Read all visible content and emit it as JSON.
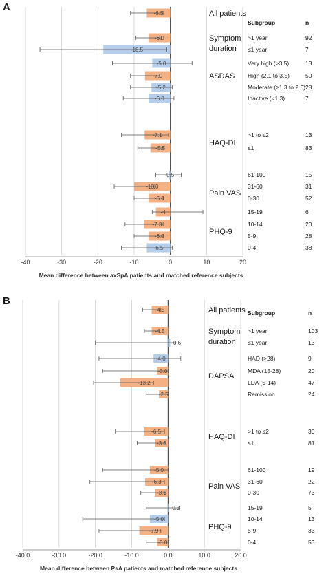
{
  "colors": {
    "orange": "#F4B183",
    "blue": "#B4CDEB",
    "grid": "#d0d0d0",
    "axis": "#7f7f7f",
    "errorbar": "#555555",
    "text": "#1a1a1a"
  },
  "chart_data": [
    {
      "type": "bar",
      "orientation": "horizontal",
      "panel_label": "A",
      "xlabel": "Mean difference between axSpA patients and matched reference subjects",
      "xlim": [
        -40,
        20
      ],
      "xticks": [
        "-40",
        "-30",
        "-20",
        "-10",
        "0",
        "10",
        "20"
      ],
      "grid": true,
      "header_subgroup": "Subgroup",
      "header_n": "n",
      "groups": [
        {
          "label": "All patients",
          "rows": [
            0
          ]
        },
        {
          "label": "Symptom duration",
          "rows": [
            1,
            2
          ]
        },
        {
          "label": "ASDAS",
          "rows": [
            3,
            4,
            5,
            6
          ]
        },
        {
          "label": "HAQ-DI",
          "rows": [
            7,
            8
          ]
        },
        {
          "label": "Pain VAS",
          "rows": [
            9,
            10,
            11
          ]
        },
        {
          "label": "PHQ-9",
          "rows": [
            12,
            13,
            14,
            15
          ]
        }
      ],
      "rows": [
        {
          "subgroup": "",
          "n": "",
          "value": -6.5,
          "label": "-6.5",
          "ci": [
            -11,
            -2
          ],
          "color": "orange"
        },
        {
          "subgroup": ">1 year",
          "n": "92",
          "value": -6.0,
          "label": "-6.0",
          "ci": [
            -9.5,
            -2.5
          ],
          "color": "orange"
        },
        {
          "subgroup": "≤1 year",
          "n": "7",
          "value": -18.5,
          "label": "-18.5",
          "ci": [
            -36,
            -1
          ],
          "color": "blue"
        },
        {
          "subgroup": "Very high (>3.5)",
          "n": "13",
          "value": -5.0,
          "label": "-5.0",
          "ci": [
            -16,
            6
          ],
          "color": "blue"
        },
        {
          "subgroup": "High (2.1 to 3.5)",
          "n": "50",
          "value": -7.0,
          "label": "-7.0",
          "ci": [
            -11,
            -3
          ],
          "color": "orange"
        },
        {
          "subgroup": "Moderate (≥1.3 to 2.0)",
          "n": "28",
          "value": -5.2,
          "label": "-5.2",
          "ci": [
            -11,
            0.5
          ],
          "color": "blue"
        },
        {
          "subgroup": "Inactive (<1.3)",
          "n": "7",
          "value": -6.0,
          "label": "-6.0",
          "ci": [
            -13,
            1
          ],
          "color": "blue"
        },
        {
          "subgroup": ">1 to ≤2",
          "n": "13",
          "value": -7.1,
          "label": "-7.1",
          "ci": [
            -13.5,
            -0.5
          ],
          "color": "orange"
        },
        {
          "subgroup": "≤1",
          "n": "83",
          "value": -5.5,
          "label": "-5.5",
          "ci": [
            -9,
            -2
          ],
          "color": "orange"
        },
        {
          "subgroup": "61-100",
          "n": "15",
          "value": -0.5,
          "label": "-0.5",
          "ci": [
            -4,
            3
          ],
          "color": "blue"
        },
        {
          "subgroup": "31-60",
          "n": "31",
          "value": -10.0,
          "label": "-10.0",
          "ci": [
            -15.5,
            -4.5
          ],
          "color": "orange"
        },
        {
          "subgroup": "0-30",
          "n": "52",
          "value": -6.0,
          "label": "-6.0",
          "ci": [
            -10,
            -2
          ],
          "color": "orange"
        },
        {
          "subgroup": "15-19",
          "n": "6",
          "value": -4.0,
          "label": "-4",
          "ci": [
            -5,
            9
          ],
          "color": "orange"
        },
        {
          "subgroup": "10-14",
          "n": "20",
          "value": -7.3,
          "label": "-7.3",
          "ci": [
            -12.5,
            -2
          ],
          "color": "orange"
        },
        {
          "subgroup": "5-9",
          "n": "28",
          "value": -6.0,
          "label": "-6.0",
          "ci": [
            -10,
            -2
          ],
          "color": "orange"
        },
        {
          "subgroup": "0-4",
          "n": "38",
          "value": -6.5,
          "label": "-6.5",
          "ci": [
            -13.5,
            0.5
          ],
          "color": "blue"
        }
      ]
    },
    {
      "type": "bar",
      "orientation": "horizontal",
      "panel_label": "B",
      "xlabel": "Mean difference between PsA patients and matched reference subjects",
      "xlim": [
        -40,
        20
      ],
      "xticks": [
        "-40.0",
        "-30.0",
        "-20.0",
        "-10.0",
        "0.0",
        "10.0",
        "20.0"
      ],
      "grid": true,
      "header_subgroup": "Subgroup",
      "header_n": "n",
      "groups": [
        {
          "label": "All patients",
          "rows": [
            0
          ]
        },
        {
          "label": "Symptom duration",
          "rows": [
            1,
            2
          ]
        },
        {
          "label": "DAPSA",
          "rows": [
            3,
            4,
            5,
            6
          ]
        },
        {
          "label": "HAQ-DI",
          "rows": [
            7,
            8
          ]
        },
        {
          "label": "Pain VAS",
          "rows": [
            9,
            10,
            11
          ]
        },
        {
          "label": "PHQ-9",
          "rows": [
            12,
            13,
            14,
            15
          ]
        }
      ],
      "rows": [
        {
          "subgroup": "",
          "n": "",
          "value": -4.5,
          "label": "-4.5",
          "ci": [
            -7,
            -2
          ],
          "color": "orange"
        },
        {
          "subgroup": ">1 year",
          "n": "103",
          "value": -4.5,
          "label": "-4.5",
          "ci": [
            -6.5,
            -2.5
          ],
          "color": "orange"
        },
        {
          "subgroup": "≤1 year",
          "n": "13",
          "value": 0.6,
          "label": "0.6",
          "ci": [
            -20,
            2
          ],
          "color": "blue"
        },
        {
          "subgroup": "HAD (>28)",
          "n": "9",
          "value": -4.0,
          "label": "-4.0",
          "ci": [
            -19,
            3.5
          ],
          "color": "blue"
        },
        {
          "subgroup": "MDA (15-28)",
          "n": "20",
          "value": -3.0,
          "label": "-3.0",
          "ci": [
            -18,
            0
          ],
          "color": "orange"
        },
        {
          "subgroup": "LDA (5-14)",
          "n": "47",
          "value": -13.2,
          "label": "-13.2",
          "ci": [
            -20.5,
            -4
          ],
          "color": "orange"
        },
        {
          "subgroup": "Remission",
          "n": "24",
          "value": -2.5,
          "label": "-2.5",
          "ci": [
            -6,
            0
          ],
          "color": "orange"
        },
        {
          "subgroup": ">1 to ≤2",
          "n": "30",
          "value": -6.5,
          "label": "-6.5",
          "ci": [
            -14.5,
            -1
          ],
          "color": "orange"
        },
        {
          "subgroup": "≤1",
          "n": "81",
          "value": -3.6,
          "label": "-3.6",
          "ci": [
            -8.5,
            -1
          ],
          "color": "orange"
        },
        {
          "subgroup": "61-100",
          "n": "19",
          "value": -5.0,
          "label": "-5.0",
          "ci": [
            -18,
            0
          ],
          "color": "orange"
        },
        {
          "subgroup": "31-60",
          "n": "22",
          "value": -6.3,
          "label": "-6.3",
          "ci": [
            -21.5,
            -1
          ],
          "color": "orange"
        },
        {
          "subgroup": "0-30",
          "n": "73",
          "value": -3.6,
          "label": "-3.6",
          "ci": [
            -7.5,
            -1
          ],
          "color": "orange"
        },
        {
          "subgroup": "15-19",
          "n": "5",
          "value": 0.3,
          "label": "0.3",
          "ci": [
            -6,
            3
          ],
          "color": "blue"
        },
        {
          "subgroup": "10-14",
          "n": "13",
          "value": -5.0,
          "label": "-5.0",
          "ci": [
            -23.5,
            -1
          ],
          "color": "blue"
        },
        {
          "subgroup": "5-9",
          "n": "33",
          "value": -7.9,
          "label": "-7.9",
          "ci": [
            -19,
            -2
          ],
          "color": "orange"
        },
        {
          "subgroup": "0-4",
          "n": "53",
          "value": -3.0,
          "label": "-3.0",
          "ci": [
            -6,
            0
          ],
          "color": "orange"
        }
      ]
    }
  ]
}
